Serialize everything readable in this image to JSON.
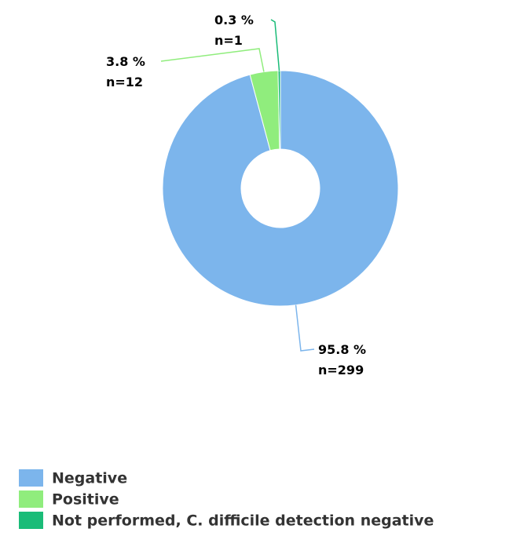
{
  "chart_data": {
    "type": "donut",
    "categories": [
      "Negative",
      "Positive",
      "Not performed, C. difficile detection negative"
    ],
    "values": [
      299,
      12,
      1
    ],
    "value_labels": [
      "n=299",
      "n=12",
      "n=1"
    ],
    "percentages": [
      95.8,
      3.8,
      0.3
    ],
    "percent_labels": [
      "95.8 %",
      "3.8 %",
      "0.3 %"
    ],
    "colors": [
      "#7cb5ec",
      "#90ed7d",
      "#1abc78"
    ],
    "legend": "bottom-left"
  }
}
